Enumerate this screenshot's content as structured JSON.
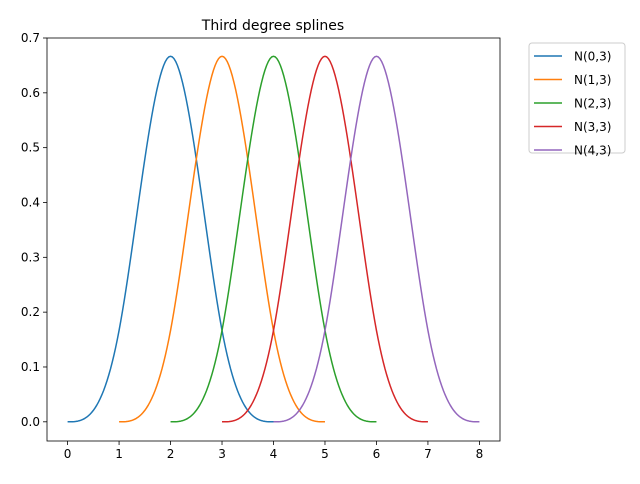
{
  "chart_data": {
    "type": "line",
    "title": "Third degree splines",
    "xlabel": "",
    "ylabel": "",
    "xlim": [
      -0.4,
      8.4
    ],
    "ylim": [
      -0.035,
      0.7
    ],
    "xticks": [
      0,
      1,
      2,
      3,
      4,
      5,
      6,
      7,
      8
    ],
    "xtick_labels": [
      "0",
      "1",
      "2",
      "3",
      "4",
      "5",
      "6",
      "7",
      "8"
    ],
    "yticks": [
      0.0,
      0.1,
      0.2,
      0.3,
      0.4,
      0.5,
      0.6,
      0.7
    ],
    "ytick_labels": [
      "0.0",
      "0.1",
      "0.2",
      "0.3",
      "0.4",
      "0.5",
      "0.6",
      "0.7"
    ],
    "grid": false,
    "legend_position": "outside-top-right",
    "series": [
      {
        "name": "N(0,3)",
        "color": "#1f77b4",
        "x": [
          0,
          0.5,
          1,
          1.5,
          2,
          2.5,
          3,
          3.5,
          4
        ],
        "y": [
          0,
          0.021,
          0.167,
          0.479,
          0.667,
          0.479,
          0.167,
          0.021,
          0
        ]
      },
      {
        "name": "N(1,3)",
        "color": "#ff7f0e",
        "x": [
          1,
          1.5,
          2,
          2.5,
          3,
          3.5,
          4,
          4.5,
          5
        ],
        "y": [
          0,
          0.021,
          0.167,
          0.479,
          0.667,
          0.479,
          0.167,
          0.021,
          0
        ]
      },
      {
        "name": "N(2,3)",
        "color": "#2ca02c",
        "x": [
          2,
          2.5,
          3,
          3.5,
          4,
          4.5,
          5,
          5.5,
          6
        ],
        "y": [
          0,
          0.021,
          0.167,
          0.479,
          0.667,
          0.479,
          0.167,
          0.021,
          0
        ]
      },
      {
        "name": "N(3,3)",
        "color": "#d62728",
        "x": [
          3,
          3.5,
          4,
          4.5,
          5,
          5.5,
          6,
          6.5,
          7
        ],
        "y": [
          0,
          0.021,
          0.167,
          0.479,
          0.667,
          0.479,
          0.167,
          0.021,
          0
        ]
      },
      {
        "name": "N(4,3)",
        "color": "#9467bd",
        "x": [
          4,
          4.5,
          5,
          5.5,
          6,
          6.5,
          7,
          7.5,
          8
        ],
        "y": [
          0,
          0.021,
          0.167,
          0.479,
          0.667,
          0.479,
          0.167,
          0.021,
          0
        ]
      }
    ]
  }
}
